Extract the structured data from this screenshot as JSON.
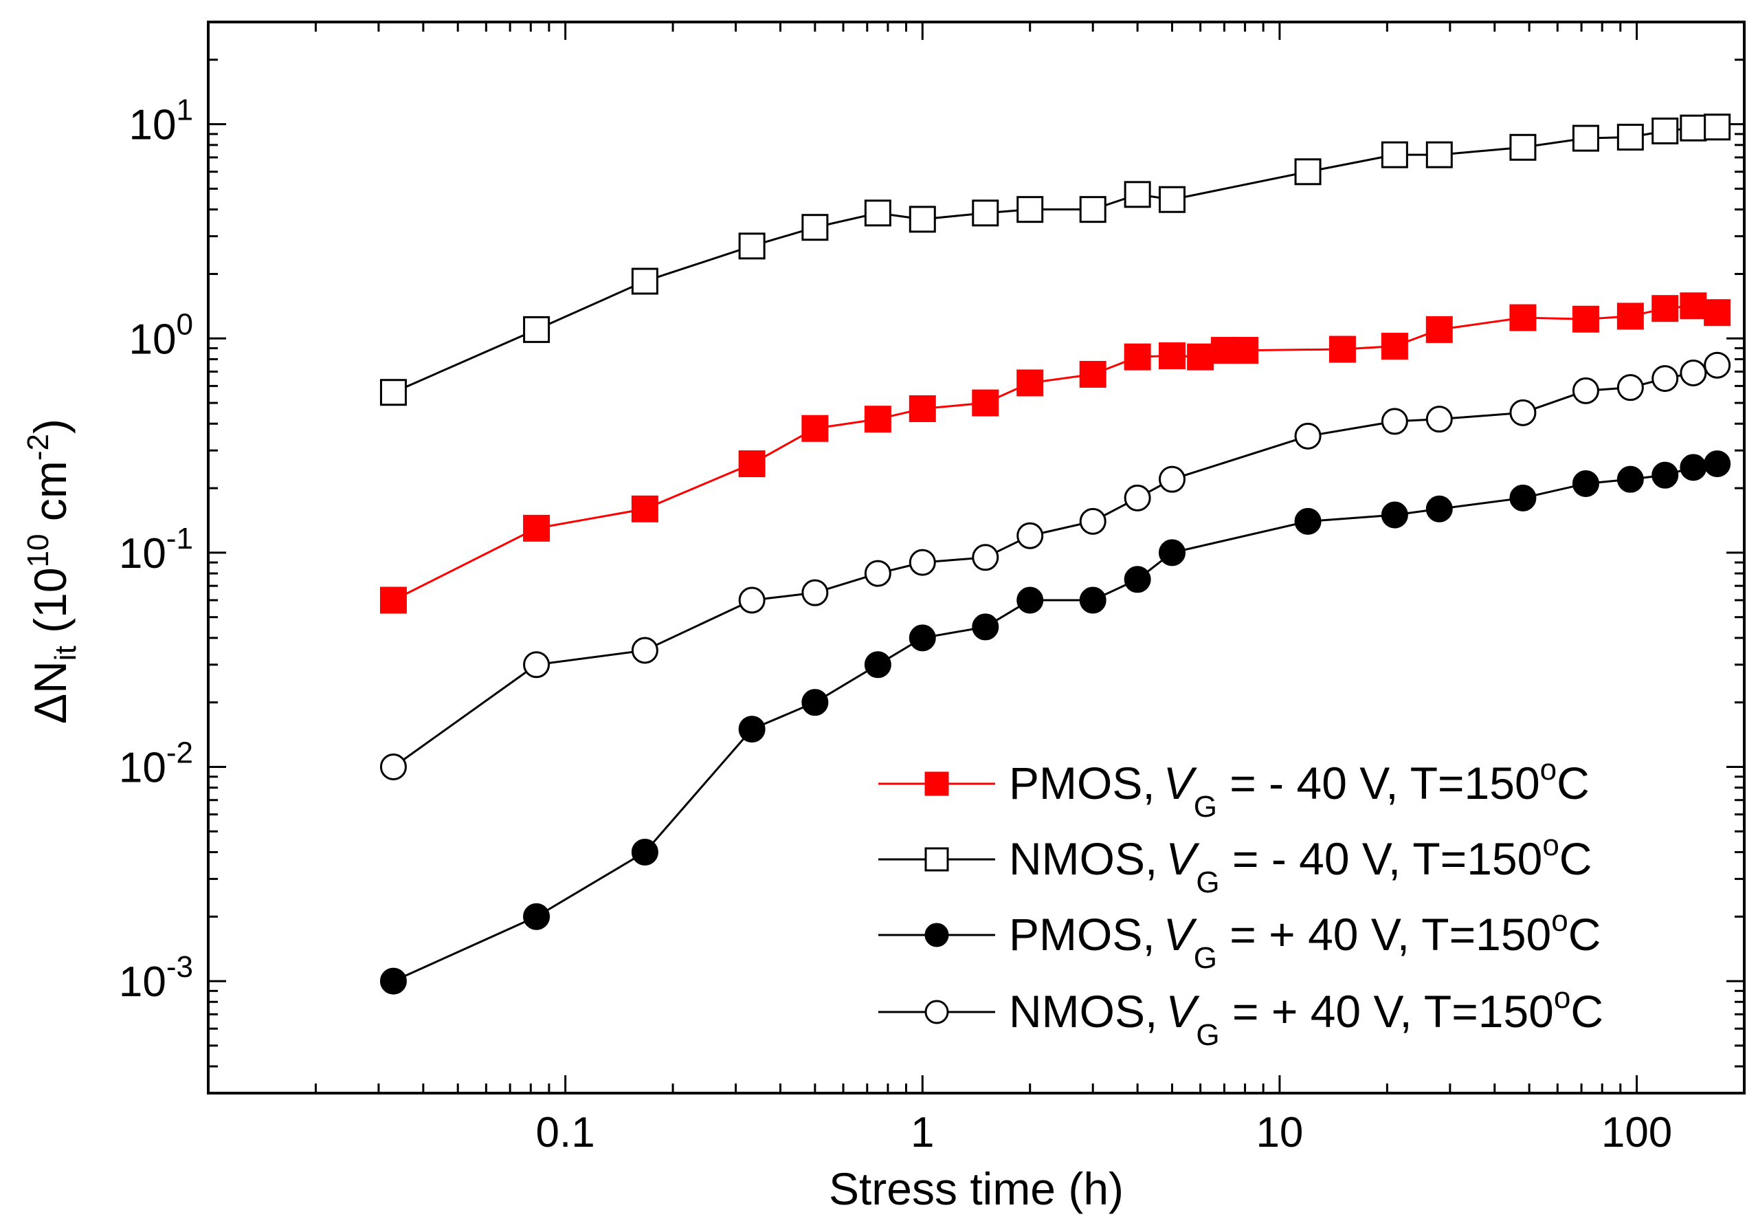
{
  "chart_data": {
    "type": "line",
    "title": "",
    "xlabel": "Stress time (h)",
    "ylabel": {
      "main": "ΔN",
      "sub": "it",
      "unit_prefix": " (10",
      "unit_exp": "10",
      "unit_mid": " cm",
      "unit_exp2": "-2",
      "unit_suffix": ")"
    },
    "xscale": "log",
    "yscale": "log",
    "xlim": [
      0.01,
      200
    ],
    "ylim": [
      0.0003,
      30
    ],
    "x_ticks": [
      {
        "value": 0.1,
        "label": "0.1"
      },
      {
        "value": 1,
        "label": "1"
      },
      {
        "value": 10,
        "label": "10"
      },
      {
        "value": 100,
        "label": "100"
      }
    ],
    "y_ticks": [
      {
        "value": 0.001,
        "base": "10",
        "exp": "-3"
      },
      {
        "value": 0.01,
        "base": "10",
        "exp": "-2"
      },
      {
        "value": 0.1,
        "base": "10",
        "exp": "-1"
      },
      {
        "value": 1,
        "base": "10",
        "exp": "0"
      },
      {
        "value": 10,
        "base": "10",
        "exp": "1"
      }
    ],
    "legend_position": "bottom-right",
    "series": [
      {
        "name": "PMOS, VG = - 40 V, T=150oC",
        "label_pre": "PMOS,",
        "label_var": "V",
        "label_sub": "G",
        "label_mid": " = - 40 V, T=150",
        "label_sup": "o",
        "label_end": "C",
        "color": "#ff0000",
        "marker": "square",
        "filled": true,
        "x": [
          0.033,
          0.083,
          0.167,
          0.333,
          0.5,
          0.75,
          1,
          1.5,
          2,
          3,
          4,
          5,
          6,
          7,
          8,
          15,
          21,
          28,
          48,
          72,
          96,
          120,
          144,
          168
        ],
        "y": [
          0.06,
          0.13,
          0.16,
          0.26,
          0.38,
          0.42,
          0.47,
          0.5,
          0.62,
          0.68,
          0.82,
          0.83,
          0.82,
          0.88,
          0.88,
          0.89,
          0.92,
          1.1,
          1.25,
          1.23,
          1.27,
          1.38,
          1.42,
          1.32
        ]
      },
      {
        "name": "NMOS, VG = - 40 V, T=150oC",
        "label_pre": "NMOS,",
        "label_var": "V",
        "label_sub": "G",
        "label_mid": " = - 40 V,  T=150",
        "label_sup": "o",
        "label_end": "C",
        "color": "#000000",
        "marker": "square",
        "filled": false,
        "x": [
          0.033,
          0.083,
          0.167,
          0.333,
          0.5,
          0.75,
          1,
          1.5,
          2,
          3,
          4,
          5,
          12,
          21,
          28,
          48,
          72,
          96,
          120,
          144,
          168
        ],
        "y": [
          0.56,
          1.1,
          1.85,
          2.7,
          3.3,
          3.85,
          3.6,
          3.85,
          4.0,
          4.0,
          4.7,
          4.45,
          6.0,
          7.2,
          7.2,
          7.8,
          8.6,
          8.7,
          9.3,
          9.6,
          9.7
        ]
      },
      {
        "name": "PMOS, VG = + 40 V, T=150oC",
        "label_pre": "PMOS,",
        "label_var": "V",
        "label_sub": "G",
        "label_mid": " = + 40 V, T=150",
        "label_sup": "o",
        "label_end": "C",
        "color": "#000000",
        "marker": "circle",
        "filled": true,
        "x": [
          0.033,
          0.083,
          0.167,
          0.333,
          0.5,
          0.75,
          1,
          1.5,
          2,
          3,
          4,
          5,
          12,
          21,
          28,
          48,
          72,
          96,
          120,
          144,
          168
        ],
        "y": [
          0.001,
          0.002,
          0.004,
          0.015,
          0.02,
          0.03,
          0.04,
          0.045,
          0.06,
          0.06,
          0.075,
          0.1,
          0.14,
          0.15,
          0.16,
          0.18,
          0.21,
          0.22,
          0.23,
          0.25,
          0.26
        ]
      },
      {
        "name": "NMOS, VG = + 40 V, T=150oC",
        "label_pre": "NMOS,",
        "label_var": "V",
        "label_sub": "G",
        "label_mid": " = + 40 V, T=150",
        "label_sup": "o",
        "label_end": "C",
        "color": "#000000",
        "marker": "circle",
        "filled": false,
        "x": [
          0.033,
          0.083,
          0.167,
          0.333,
          0.5,
          0.75,
          1,
          1.5,
          2,
          3,
          4,
          5,
          12,
          21,
          28,
          48,
          72,
          96,
          120,
          144,
          168
        ],
        "y": [
          0.01,
          0.03,
          0.035,
          0.06,
          0.065,
          0.08,
          0.09,
          0.095,
          0.12,
          0.14,
          0.18,
          0.22,
          0.35,
          0.41,
          0.42,
          0.45,
          0.57,
          0.59,
          0.65,
          0.69,
          0.75
        ]
      }
    ]
  }
}
